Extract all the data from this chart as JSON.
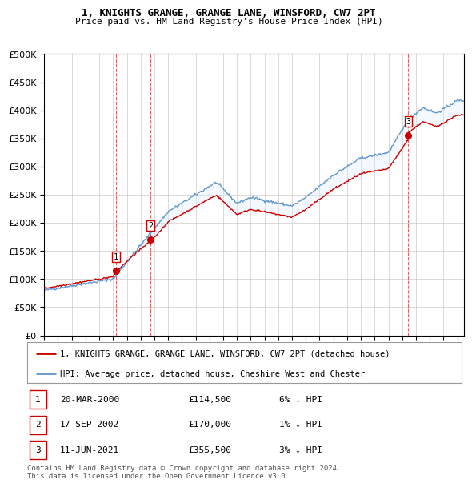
{
  "title": "1, KNIGHTS GRANGE, GRANGE LANE, WINSFORD, CW7 2PT",
  "subtitle": "Price paid vs. HM Land Registry's House Price Index (HPI)",
  "ylim": [
    0,
    500000
  ],
  "yticks": [
    0,
    50000,
    100000,
    150000,
    200000,
    250000,
    300000,
    350000,
    400000,
    450000,
    500000
  ],
  "xlim_start": 1995.0,
  "xlim_end": 2025.5,
  "sale_dates": [
    2000.22,
    2002.72,
    2021.44
  ],
  "sale_prices": [
    114500,
    170000,
    355500
  ],
  "sale_labels": [
    "1",
    "2",
    "3"
  ],
  "legend_line1": "1, KNIGHTS GRANGE, GRANGE LANE, WINSFORD, CW7 2PT (detached house)",
  "legend_line2": "HPI: Average price, detached house, Cheshire West and Chester",
  "table_data": [
    [
      "1",
      "20-MAR-2000",
      "£114,500",
      "6% ↓ HPI"
    ],
    [
      "2",
      "17-SEP-2002",
      "£170,000",
      "1% ↓ HPI"
    ],
    [
      "3",
      "11-JUN-2021",
      "£355,500",
      "3% ↓ HPI"
    ]
  ],
  "footer": "Contains HM Land Registry data © Crown copyright and database right 2024.\nThis data is licensed under the Open Government Licence v3.0.",
  "red_color": "#cc0000",
  "blue_color": "#6699cc",
  "shading_color": "#ddeeff"
}
